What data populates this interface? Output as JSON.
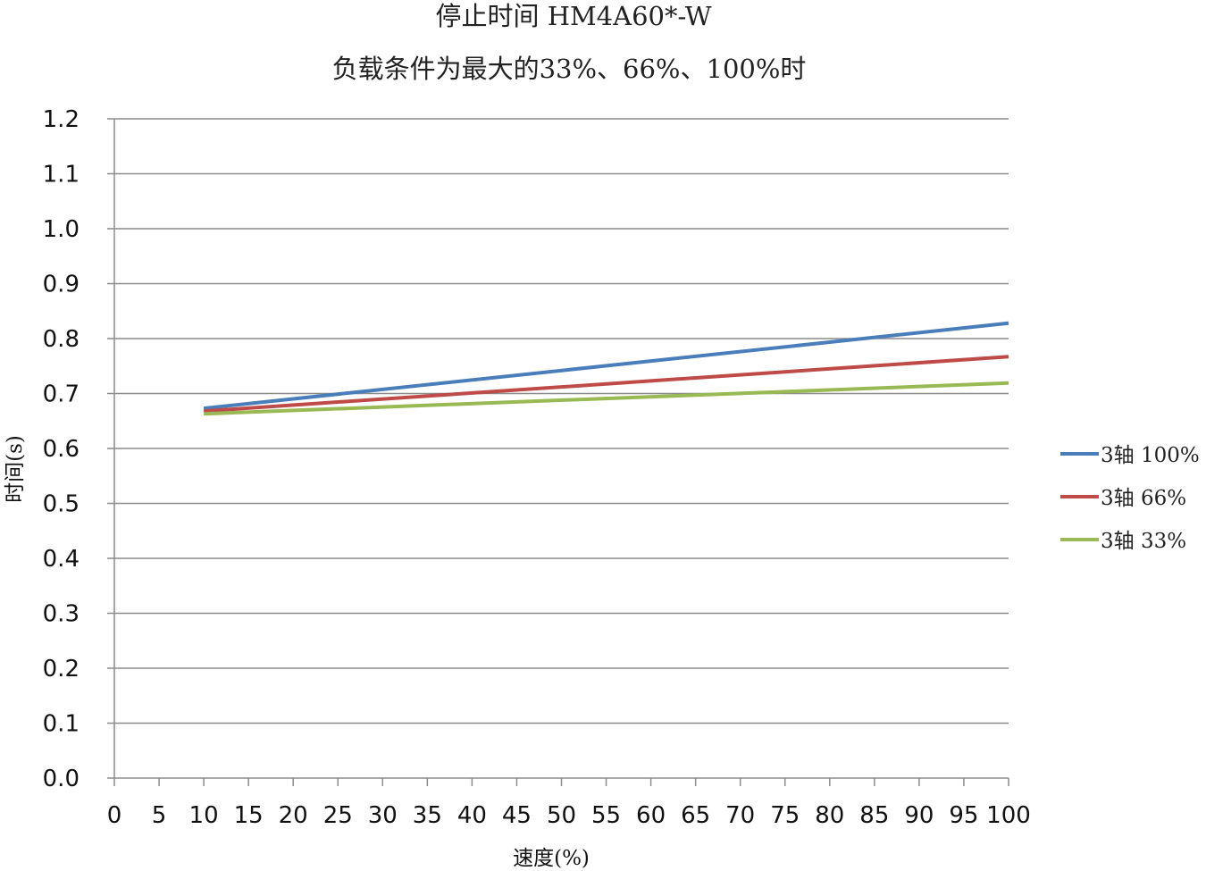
{
  "chart_data": {
    "type": "line",
    "title": "停止时间 HM4A60*-W",
    "subtitle": "负载条件为最大的33%、66%、100%时",
    "xlabel": "速度(%)",
    "ylabel": "时间(s)",
    "x_ticks": [
      0,
      5,
      10,
      15,
      20,
      25,
      30,
      35,
      40,
      45,
      50,
      55,
      60,
      65,
      70,
      75,
      80,
      85,
      90,
      95,
      100
    ],
    "y_ticks": [
      "0.0",
      "0.1",
      "0.2",
      "0.3",
      "0.4",
      "0.5",
      "0.6",
      "0.7",
      "0.8",
      "0.9",
      "1.0",
      "1.1",
      "1.2"
    ],
    "xlim": [
      0,
      100
    ],
    "ylim": [
      0,
      1.2
    ],
    "grid": "horizontal",
    "legend_position": "right",
    "series": [
      {
        "name": "3轴 100%",
        "color": "#4a7ebb",
        "x": [
          10,
          100
        ],
        "y": [
          0.673,
          0.828
        ]
      },
      {
        "name": "3轴 66%",
        "color": "#be4b48",
        "x": [
          10,
          100
        ],
        "y": [
          0.668,
          0.767
        ]
      },
      {
        "name": "3轴 33%",
        "color": "#98b954",
        "x": [
          10,
          100
        ],
        "y": [
          0.663,
          0.719
        ]
      }
    ]
  }
}
